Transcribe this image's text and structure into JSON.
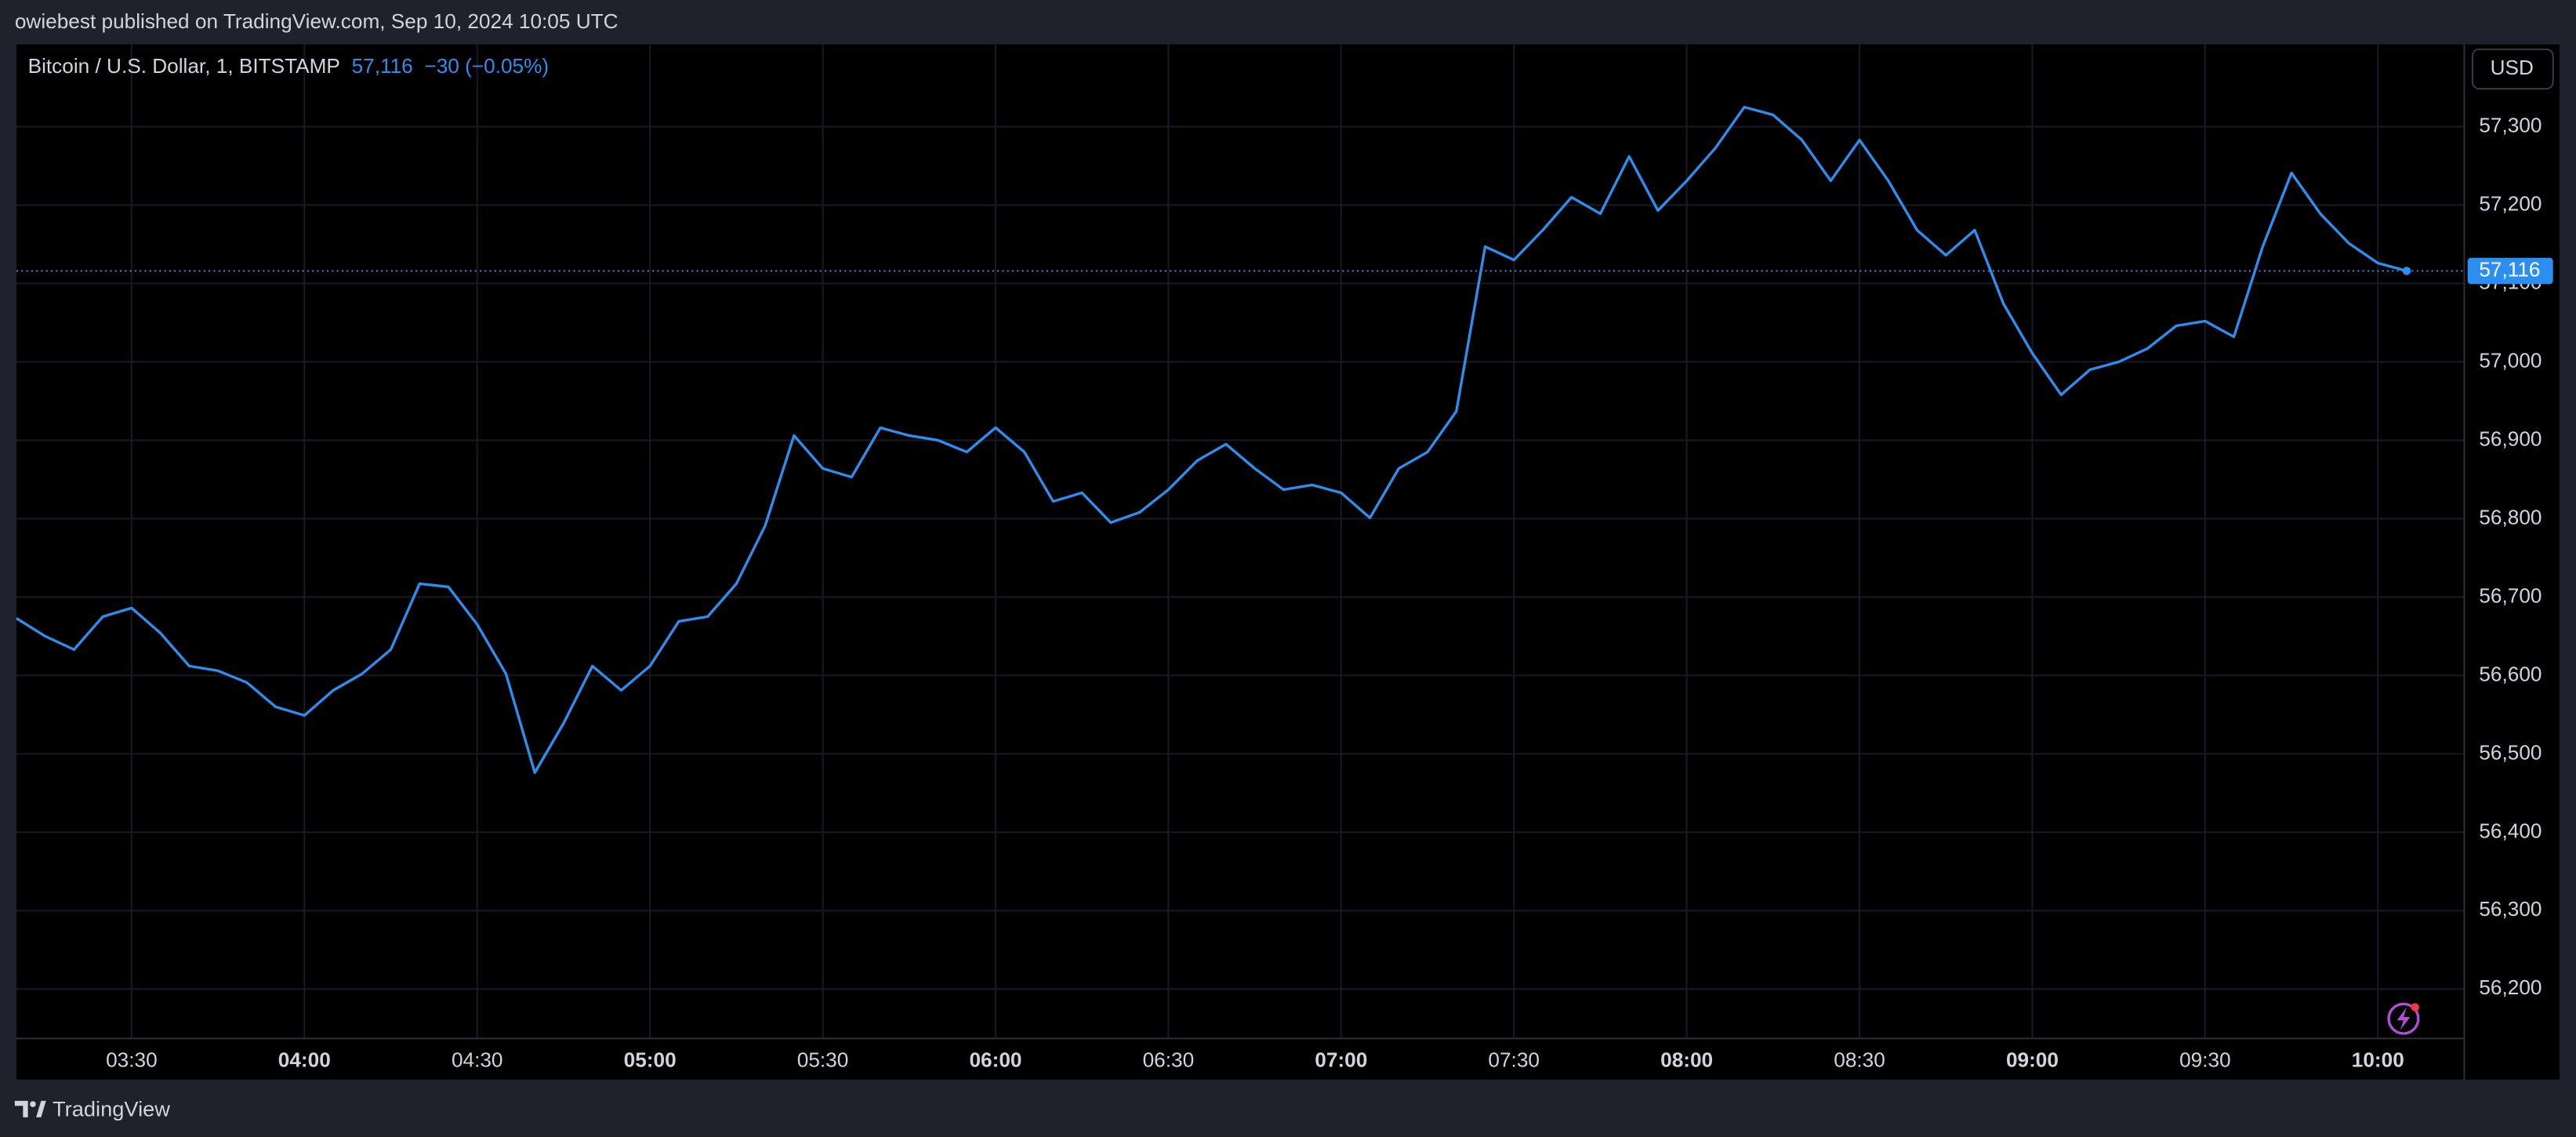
{
  "header": {
    "publisher": "owiebest published on TradingView.com, Sep 10, 2024 10:05 UTC"
  },
  "chart_data": {
    "type": "line",
    "title": "Bitcoin / U.S. Dollar, 1, BITSTAMP",
    "last_price": {
      "value": 57116,
      "label": "57,116"
    },
    "change": "−30 (−0.05%)",
    "currency": "USD",
    "x": [
      "03:10",
      "03:15",
      "03:20",
      "03:25",
      "03:30",
      "03:35",
      "03:40",
      "03:45",
      "03:50",
      "03:55",
      "04:00",
      "04:05",
      "04:10",
      "04:15",
      "04:20",
      "04:25",
      "04:30",
      "04:35",
      "04:40",
      "04:45",
      "04:50",
      "04:55",
      "05:00",
      "05:05",
      "05:10",
      "05:15",
      "05:20",
      "05:25",
      "05:30",
      "05:35",
      "05:40",
      "05:45",
      "05:50",
      "05:55",
      "06:00",
      "06:05",
      "06:10",
      "06:15",
      "06:20",
      "06:25",
      "06:30",
      "06:35",
      "06:40",
      "06:45",
      "06:50",
      "06:55",
      "07:00",
      "07:05",
      "07:10",
      "07:15",
      "07:20",
      "07:25",
      "07:30",
      "07:35",
      "07:40",
      "07:45",
      "07:50",
      "07:55",
      "08:00",
      "08:05",
      "08:10",
      "08:15",
      "08:20",
      "08:25",
      "08:30",
      "08:35",
      "08:40",
      "08:45",
      "08:50",
      "08:55",
      "09:00",
      "09:05",
      "09:10",
      "09:15",
      "09:20",
      "09:25",
      "09:30",
      "09:35",
      "09:40",
      "09:45",
      "09:50",
      "09:55",
      "10:00",
      "10:05"
    ],
    "series": [
      {
        "name": "Bitcoin / U.S. Dollar",
        "color": "#2a8ff0",
        "values": [
          56673,
          56650,
          56633,
          56675,
          56686,
          56654,
          56612,
          56606,
          56591,
          56560,
          56549,
          56581,
          56602,
          56633,
          56717,
          56713,
          56665,
          56602,
          56476,
          56539,
          56612,
          56581,
          56612,
          56669,
          56675,
          56717,
          56791,
          56906,
          56864,
          56853,
          56916,
          56906,
          56900,
          56885,
          56916,
          56885,
          56822,
          56833,
          56795,
          56808,
          56837,
          56874,
          56895,
          56864,
          56837,
          56843,
          56833,
          56801,
          56864,
          56885,
          56937,
          57147,
          57130,
          57168,
          57210,
          57189,
          57262,
          57193,
          57231,
          57273,
          57325,
          57315,
          57283,
          57231,
          57283,
          57231,
          57168,
          57136,
          57168,
          57074,
          57011,
          56958,
          56990,
          57000,
          57017,
          57046,
          57052,
          57032,
          57147,
          57241,
          57189,
          57151,
          57126,
          57116
        ]
      }
    ],
    "xlim": [
      "03:10",
      "10:15"
    ],
    "xticks": [
      "03:30",
      "04:00",
      "04:30",
      "05:00",
      "05:30",
      "06:00",
      "06:30",
      "07:00",
      "07:30",
      "08:00",
      "08:30",
      "09:00",
      "09:30",
      "10:00"
    ],
    "ylim": [
      56137,
      57405
    ],
    "yticks": [
      {
        "value": 56200,
        "label": "56,200"
      },
      {
        "value": 56300,
        "label": "56,300"
      },
      {
        "value": 56400,
        "label": "56,400"
      },
      {
        "value": 56500,
        "label": "56,500"
      },
      {
        "value": 56600,
        "label": "56,600"
      },
      {
        "value": 56700,
        "label": "56,700"
      },
      {
        "value": 56800,
        "label": "56,800"
      },
      {
        "value": 56900,
        "label": "56,900"
      },
      {
        "value": 57000,
        "label": "57,000"
      },
      {
        "value": 57100,
        "label": "57,100"
      },
      {
        "value": 57200,
        "label": "57,200"
      },
      {
        "value": 57300,
        "label": "57,300"
      }
    ],
    "grid": true
  },
  "footer": {
    "brand": "TradingView"
  }
}
